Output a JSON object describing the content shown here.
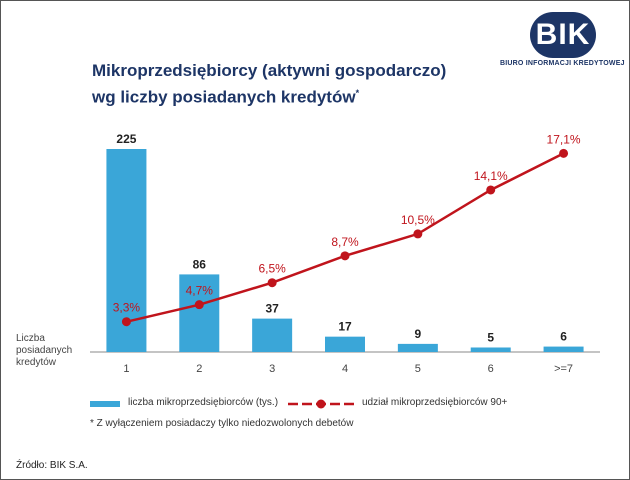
{
  "logo": {
    "mark": "BIK",
    "text": "BIURO INFORMACJI KREDYTOWEJ"
  },
  "title_line1": "Mikroprzedsiębiorcy (aktywni gospodarczo)",
  "title_line2": "wg liczby posiadanych kredytów",
  "title_mark": "*",
  "ylabel": "Liczba posiadanych kredytów",
  "legend": {
    "bars": "liczba mikroprzedsiębiorców (tys.)",
    "line": "udział mikroprzedsiębiorców 90+"
  },
  "footnote": "*  Z wyłączeniem posiadaczy tylko niedozwolonych debetów",
  "source": "Źródło: BIK S.A.",
  "chart_data": {
    "type": "bar",
    "categories": [
      "1",
      "2",
      "3",
      "4",
      "5",
      "6",
      ">=7"
    ],
    "series": [
      {
        "name": "liczba mikroprzedsiębiorców (tys.)",
        "type": "bar",
        "values": [
          225,
          86,
          37,
          17,
          9,
          5,
          6
        ],
        "labels": [
          "225",
          "86",
          "37",
          "17",
          "9",
          "5",
          "6"
        ],
        "color": "#3aa6d8"
      },
      {
        "name": "udział mikroprzedsiębiorców 90+",
        "type": "line",
        "values": [
          3.3,
          4.7,
          6.5,
          8.7,
          10.5,
          14.1,
          17.1
        ],
        "labels": [
          "3,3%",
          "4,7%",
          "6,5%",
          "8,7%",
          "10,5%",
          "14,1%",
          "17,1%"
        ],
        "color": "#c0141c"
      }
    ],
    "grid": false,
    "legend_position": "bottom"
  }
}
